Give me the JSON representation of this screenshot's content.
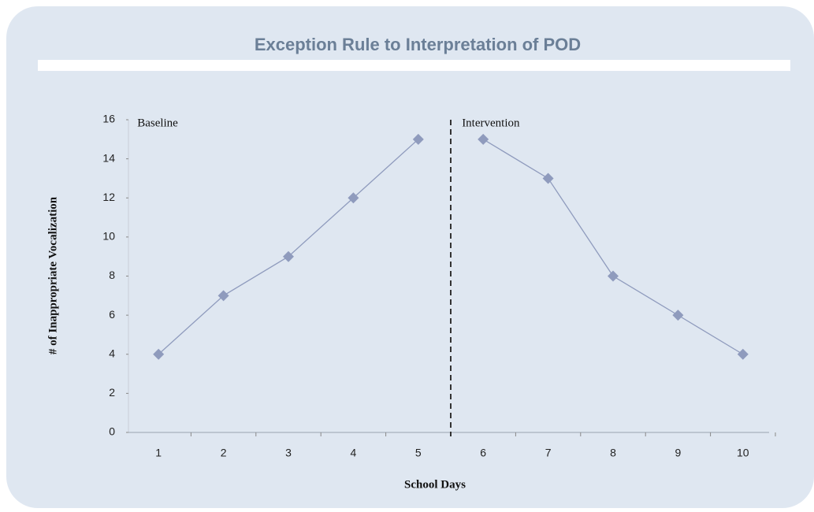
{
  "chart_data": {
    "type": "line",
    "title": "Exception Rule to Interpretation of POD",
    "x_label": "School Days",
    "y_label": "# of Inappropriate Vocalization",
    "x": [
      1,
      2,
      3,
      4,
      5,
      6,
      7,
      8,
      9,
      10
    ],
    "series": [
      {
        "name": "Baseline",
        "color": "#8f9bbd",
        "values": [
          4,
          7,
          9,
          12,
          15,
          null,
          null,
          null,
          null,
          null
        ]
      },
      {
        "name": "Intervention",
        "color": "#8f9bbd",
        "values": [
          null,
          null,
          null,
          null,
          null,
          15,
          13,
          8,
          6,
          4
        ]
      }
    ],
    "xlim": [
      0.5,
      10.5
    ],
    "xticks": [
      1,
      2,
      3,
      4,
      5,
      6,
      7,
      8,
      9,
      10
    ],
    "ylim": [
      0,
      16
    ],
    "yticks": [
      0,
      2,
      4,
      6,
      8,
      10,
      12,
      14,
      16
    ],
    "grid": false
  }
}
